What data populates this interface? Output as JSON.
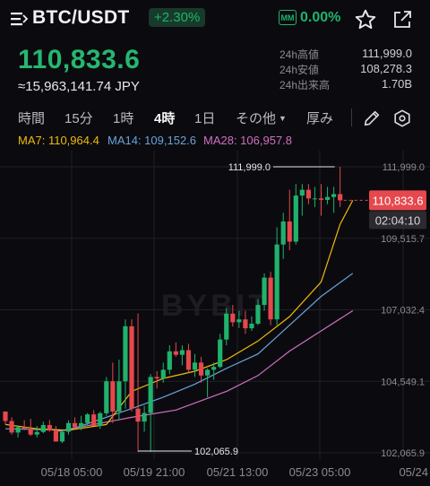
{
  "header": {
    "pair": "BTC/USDT",
    "change": "+2.30%",
    "mm_label": "MM",
    "mm_value": "0.00%",
    "price": "110,833.6",
    "jpy": "≈15,963,141.74 JPY",
    "stats": [
      {
        "label": "24h高値",
        "value": "111,999.0"
      },
      {
        "label": "24h安値",
        "value": "108,278.3"
      },
      {
        "label": "24h出来高",
        "value": "1.70B"
      }
    ]
  },
  "tabs": [
    {
      "label": "時間",
      "active": false
    },
    {
      "label": "15分",
      "active": false
    },
    {
      "label": "1時",
      "active": false
    },
    {
      "label": "4時",
      "active": true
    },
    {
      "label": "1日",
      "active": false
    },
    {
      "label": "その他",
      "active": false
    },
    {
      "label": "厚み",
      "active": false
    }
  ],
  "ma": [
    {
      "text": "MA7: 110,964.4",
      "color": "#f0b90b"
    },
    {
      "text": "MA14: 109,152.6",
      "color": "#6aa3d8"
    },
    {
      "text": "MA28: 106,957.8",
      "color": "#d16fc1"
    }
  ],
  "colors": {
    "up": "#20b26c",
    "down": "#e5484d",
    "ma7": "#f0b90b",
    "ma14": "#6aa3d8",
    "ma28": "#d16fc1"
  },
  "watermark": "BYBIT",
  "chart_data": {
    "type": "candlestick",
    "y_ticks": [
      "111,999.0",
      "109,515.7",
      "107,032.4",
      "104,549.1",
      "102,065.9"
    ],
    "ylim": [
      102065.9,
      111999.0
    ],
    "x_ticks": [
      "05/18 05:00",
      "05/19 21:00",
      "05/21 13:00",
      "05/23 05:00",
      "05/24"
    ],
    "last_price_label": "110,833.6",
    "countdown": "02:04:10",
    "high_marker": "111,999.0",
    "low_marker": "102,065.9",
    "candles": [
      [
        103500,
        103500,
        103050,
        103170
      ],
      [
        103170,
        103300,
        102700,
        102770
      ],
      [
        102770,
        103000,
        102600,
        102960
      ],
      [
        102960,
        103200,
        102850,
        102900
      ],
      [
        102900,
        103250,
        102650,
        102700
      ],
      [
        102700,
        103000,
        102600,
        102790
      ],
      [
        102790,
        103150,
        102750,
        103030
      ],
      [
        103030,
        103200,
        102800,
        102840
      ],
      [
        102840,
        103000,
        102450,
        102460
      ],
      [
        102460,
        102850,
        102400,
        102800
      ],
      [
        102800,
        103200,
        102700,
        103100
      ],
      [
        103100,
        103300,
        102900,
        102950
      ],
      [
        102950,
        103350,
        102850,
        103100
      ],
      [
        103100,
        103450,
        103000,
        103400
      ],
      [
        103400,
        103550,
        103000,
        103000
      ],
      [
        103000,
        103500,
        102900,
        103440
      ],
      [
        103440,
        104700,
        103350,
        104550
      ],
      [
        104550,
        105200,
        103100,
        103500
      ],
      [
        103500,
        105300,
        103200,
        104550
      ],
      [
        104550,
        106700,
        103600,
        106460
      ],
      [
        106460,
        106700,
        103500,
        103600
      ],
      [
        103600,
        106900,
        102100,
        103150
      ],
      [
        103150,
        103700,
        102800,
        103450
      ],
      [
        103450,
        104800,
        102100,
        104700
      ],
      [
        104700,
        104900,
        104300,
        104650
      ],
      [
        104650,
        105200,
        104500,
        104950
      ],
      [
        104950,
        105800,
        104800,
        105590
      ],
      [
        105590,
        105900,
        105400,
        105470
      ],
      [
        105470,
        105800,
        105100,
        105630
      ],
      [
        105630,
        105850,
        104850,
        104950
      ],
      [
        104950,
        105500,
        104700,
        105200
      ],
      [
        105200,
        105400,
        104500,
        104750
      ],
      [
        104750,
        105000,
        104000,
        104950
      ],
      [
        104950,
        105200,
        104600,
        105050
      ],
      [
        105050,
        106200,
        105000,
        106000
      ],
      [
        106000,
        107100,
        105800,
        106900
      ],
      [
        106900,
        107200,
        106450,
        106600
      ],
      [
        106600,
        107000,
        106400,
        106700
      ],
      [
        106700,
        107000,
        106200,
        106390
      ],
      [
        106390,
        106800,
        106300,
        106550
      ],
      [
        106550,
        107400,
        106500,
        107200
      ],
      [
        107200,
        108300,
        107000,
        108150
      ],
      [
        108150,
        108350,
        106500,
        106700
      ],
      [
        106700,
        109900,
        106500,
        109300
      ],
      [
        109300,
        110400,
        108800,
        110100
      ],
      [
        110100,
        111200,
        109100,
        109400
      ],
      [
        109400,
        111400,
        109300,
        111000
      ],
      [
        111000,
        111400,
        110300,
        111200
      ],
      [
        111200,
        111400,
        110700,
        110900
      ],
      [
        110900,
        111300,
        110600,
        110900
      ],
      [
        110900,
        111400,
        110300,
        110850
      ],
      [
        110850,
        111300,
        110700,
        110950
      ],
      [
        110950,
        111300,
        110400,
        111050
      ],
      [
        111050,
        111999,
        110600,
        110833.6
      ]
    ],
    "ma7": [
      [
        0,
        103050
      ],
      [
        5,
        102900
      ],
      [
        10,
        102850
      ],
      [
        16,
        103050
      ],
      [
        20,
        104200
      ],
      [
        25,
        104650
      ],
      [
        30,
        104900
      ],
      [
        35,
        105300
      ],
      [
        40,
        105950
      ],
      [
        45,
        106800
      ],
      [
        50,
        108000
      ],
      [
        53,
        110000
      ],
      [
        55,
        110833
      ]
    ],
    "ma14": [
      [
        0,
        102900
      ],
      [
        10,
        102850
      ],
      [
        20,
        103600
      ],
      [
        25,
        104000
      ],
      [
        30,
        104450
      ],
      [
        35,
        105000
      ],
      [
        40,
        105500
      ],
      [
        45,
        106500
      ],
      [
        50,
        107500
      ],
      [
        55,
        108300
      ]
    ],
    "ma28": [
      [
        8,
        102800
      ],
      [
        20,
        103300
      ],
      [
        27,
        103550
      ],
      [
        35,
        104200
      ],
      [
        40,
        104750
      ],
      [
        45,
        105600
      ],
      [
        50,
        106300
      ],
      [
        55,
        107000
      ]
    ]
  }
}
